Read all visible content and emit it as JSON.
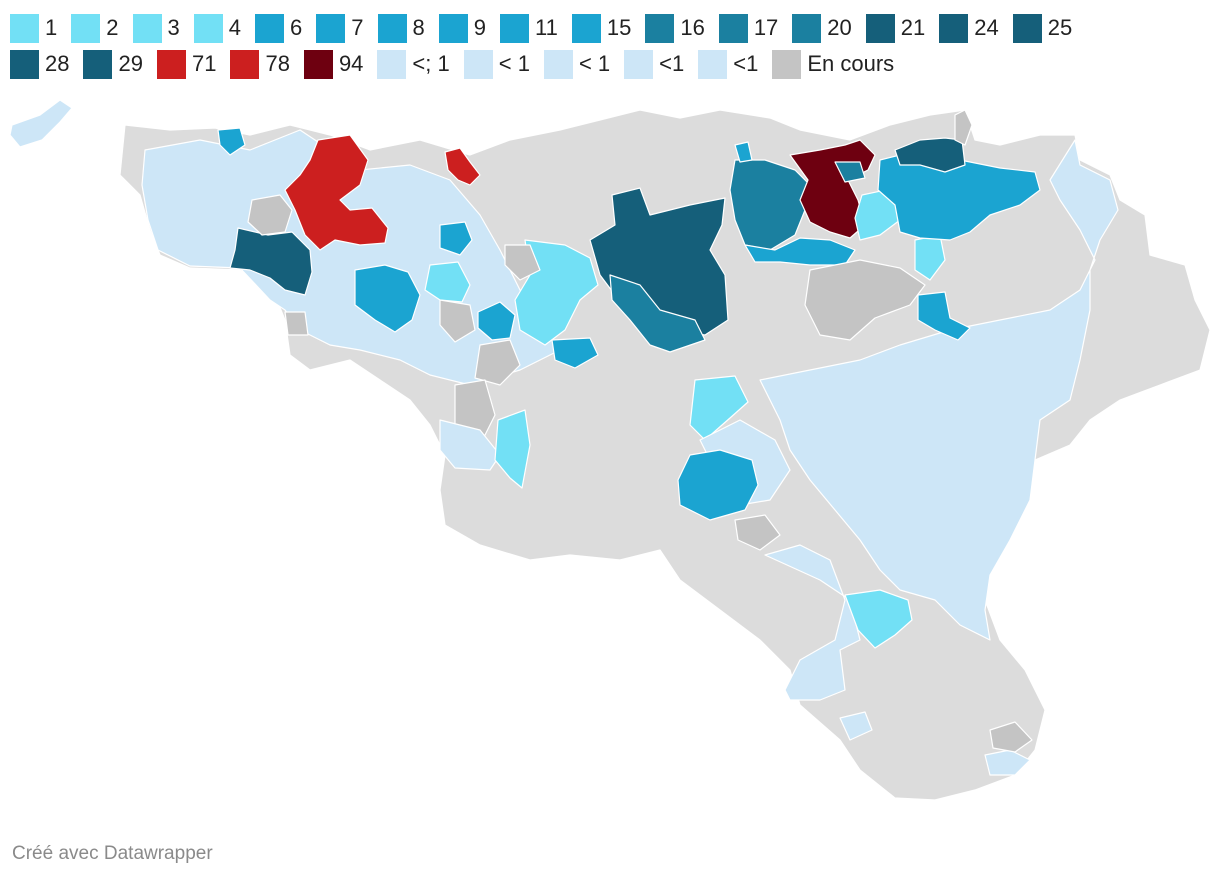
{
  "legend_row1": [
    {
      "label": "1",
      "color": "#72e0f5"
    },
    {
      "label": "2",
      "color": "#72e0f5"
    },
    {
      "label": "3",
      "color": "#72e0f5"
    },
    {
      "label": "4",
      "color": "#72e0f5"
    },
    {
      "label": "6",
      "color": "#1ba4d1"
    },
    {
      "label": "7",
      "color": "#1ba4d1"
    },
    {
      "label": "8",
      "color": "#1ba4d1"
    },
    {
      "label": "9",
      "color": "#1ba4d1"
    },
    {
      "label": "11",
      "color": "#1ba4d1"
    },
    {
      "label": "15",
      "color": "#1ba4d1"
    },
    {
      "label": "16",
      "color": "#1b80a0"
    },
    {
      "label": "17",
      "color": "#1b80a0"
    },
    {
      "label": "20",
      "color": "#1b80a0"
    },
    {
      "label": "21",
      "color": "#155f7a"
    },
    {
      "label": "24",
      "color": "#155f7a"
    },
    {
      "label": "25",
      "color": "#155f7a"
    }
  ],
  "legend_row2": [
    {
      "label": "28",
      "color": "#155f7a"
    },
    {
      "label": "29",
      "color": "#155f7a"
    },
    {
      "label": "71",
      "color": "#cc1f1f"
    },
    {
      "label": "78",
      "color": "#cc1f1f"
    },
    {
      "label": "94",
      "color": "#6e0010"
    },
    {
      "label": "<; 1",
      "color": "#cde6f7"
    },
    {
      "label": "< 1",
      "color": "#cde6f7"
    },
    {
      "label": "< 1",
      "color": "#cde6f7"
    },
    {
      "label": "<1",
      "color": "#cde6f7"
    },
    {
      "label": "<1",
      "color": "#cde6f7"
    },
    {
      "label": "En cours",
      "color": "#c4c4c4"
    }
  ],
  "credit": "Créé avec Datawrapper",
  "colors": {
    "no_data": "#dcdcdc",
    "en_cours": "#c4c4c4",
    "lt1": "#cde6f7",
    "c1_4": "#72e0f5",
    "c6_15": "#1ba4d1",
    "c16_20": "#1b80a0",
    "c21_29": "#155f7a",
    "c71_78": "#cc1f1f",
    "c94": "#6e0010"
  }
}
